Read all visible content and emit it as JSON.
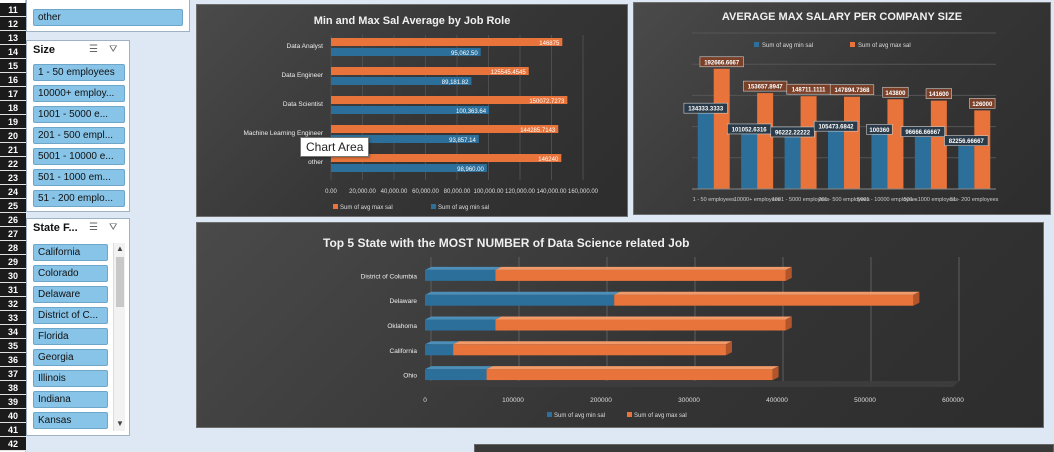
{
  "row_numbers": [
    "11",
    "12",
    "13",
    "14",
    "15",
    "16",
    "17",
    "18",
    "19",
    "20",
    "21",
    "22",
    "23",
    "24",
    "25",
    "26",
    "27",
    "28",
    "29",
    "30",
    "31",
    "32",
    "33",
    "34",
    "35",
    "36",
    "37",
    "38",
    "39",
    "40",
    "41",
    "42"
  ],
  "top_slicer": {
    "visible_item": "other"
  },
  "size_slicer": {
    "title": "Size",
    "items": [
      "1 - 50 employees",
      "10000+ employ...",
      "1001 - 5000 e...",
      "201 - 500 empl...",
      "5001 - 10000 e...",
      "501 - 1000 em...",
      "51 - 200 emplo..."
    ]
  },
  "state_slicer": {
    "title": "State F...",
    "items": [
      "California",
      "Colorado",
      "Delaware",
      "District of C...",
      "Florida",
      "Georgia",
      "Illinois",
      "Indiana",
      "Kansas"
    ]
  },
  "tooltip": "Chart Area",
  "colors": {
    "orange": "#e8743b",
    "blue": "#2c6f9a",
    "slicer_item": "#88c4e8"
  },
  "chart_data": [
    {
      "type": "bar",
      "orientation": "horizontal",
      "title": "Min and Max Sal Average by Job Role",
      "categories": [
        "Data Analyst",
        "Data Engineer",
        "Data Scientist",
        "Machine Learning Engineer",
        "other"
      ],
      "series": [
        {
          "name": "Sum of avg max sal",
          "values": [
            146875,
            125545.4545,
            150072.7273,
            144285.7143,
            146240
          ],
          "labels": [
            "146875",
            "125545.4545",
            "150072.7273",
            "144285.7143",
            "146240"
          ]
        },
        {
          "name": "Sum of avg min sal",
          "values": [
            95062.5,
            89181.82,
            100363.64,
            93857.14,
            98960.0
          ],
          "labels": [
            "95,062.50",
            "89,181.82",
            "100,363.64",
            "93,857.14",
            "98,960.00"
          ]
        }
      ],
      "xlim": [
        0,
        160000
      ],
      "xticks": [
        "0.00",
        "20,000.00",
        "40,000.00",
        "60,000.00",
        "80,000.00",
        "100,000.00",
        "120,000.00",
        "140,000.00",
        "160,000.00"
      ],
      "legend": "bottom"
    },
    {
      "type": "bar",
      "title": "AVERAGE MAX SALARY PER COMPANY SIZE",
      "categories": [
        "1 - 50 employees",
        "10000+ employees",
        "1001 - 5000 employees",
        "201 - 500 employees",
        "5001 - 10000 employees",
        "501 - 1000 employees",
        "51 - 200 employees"
      ],
      "series": [
        {
          "name": "Sum of avg min sal",
          "values": [
            134333.3333,
            101052.6316,
            96222.22222,
            105473.6842,
            100360,
            96666.66667,
            82256.66667
          ],
          "labels": [
            "134333.3333",
            "101052.6316",
            "96222.22222",
            "105473.6842",
            "100360",
            "96666.66667",
            "82256.66667"
          ]
        },
        {
          "name": "Sum of avg max sal",
          "values": [
            192666.6667,
            153657.8947,
            148711.1111,
            147894.7368,
            143800,
            141600,
            126000
          ],
          "labels": [
            "192666.6667",
            "153657.8947",
            "148711.1111",
            "147894.7368",
            "143800",
            "141600",
            "126000"
          ]
        }
      ],
      "ylim": [
        0,
        250000
      ],
      "legend": "top"
    },
    {
      "type": "bar",
      "orientation": "horizontal",
      "stacked": true,
      "title": "Top 5 State with the MOST NUMBER of Data Science related Job",
      "categories": [
        "District of Columbia",
        "Delaware",
        "Oklahoma",
        "California",
        "Ohio"
      ],
      "series": [
        {
          "name": "Sum of avg min sal",
          "values": [
            80000,
            215000,
            80000,
            32000,
            70000
          ]
        },
        {
          "name": "Sum of avg max sal",
          "values": [
            330000,
            340000,
            330000,
            310000,
            325000
          ]
        }
      ],
      "xlim": [
        0,
        600000
      ],
      "xticks": [
        "0",
        "100000",
        "200000",
        "300000",
        "400000",
        "500000",
        "600000"
      ],
      "legend": "bottom"
    }
  ]
}
